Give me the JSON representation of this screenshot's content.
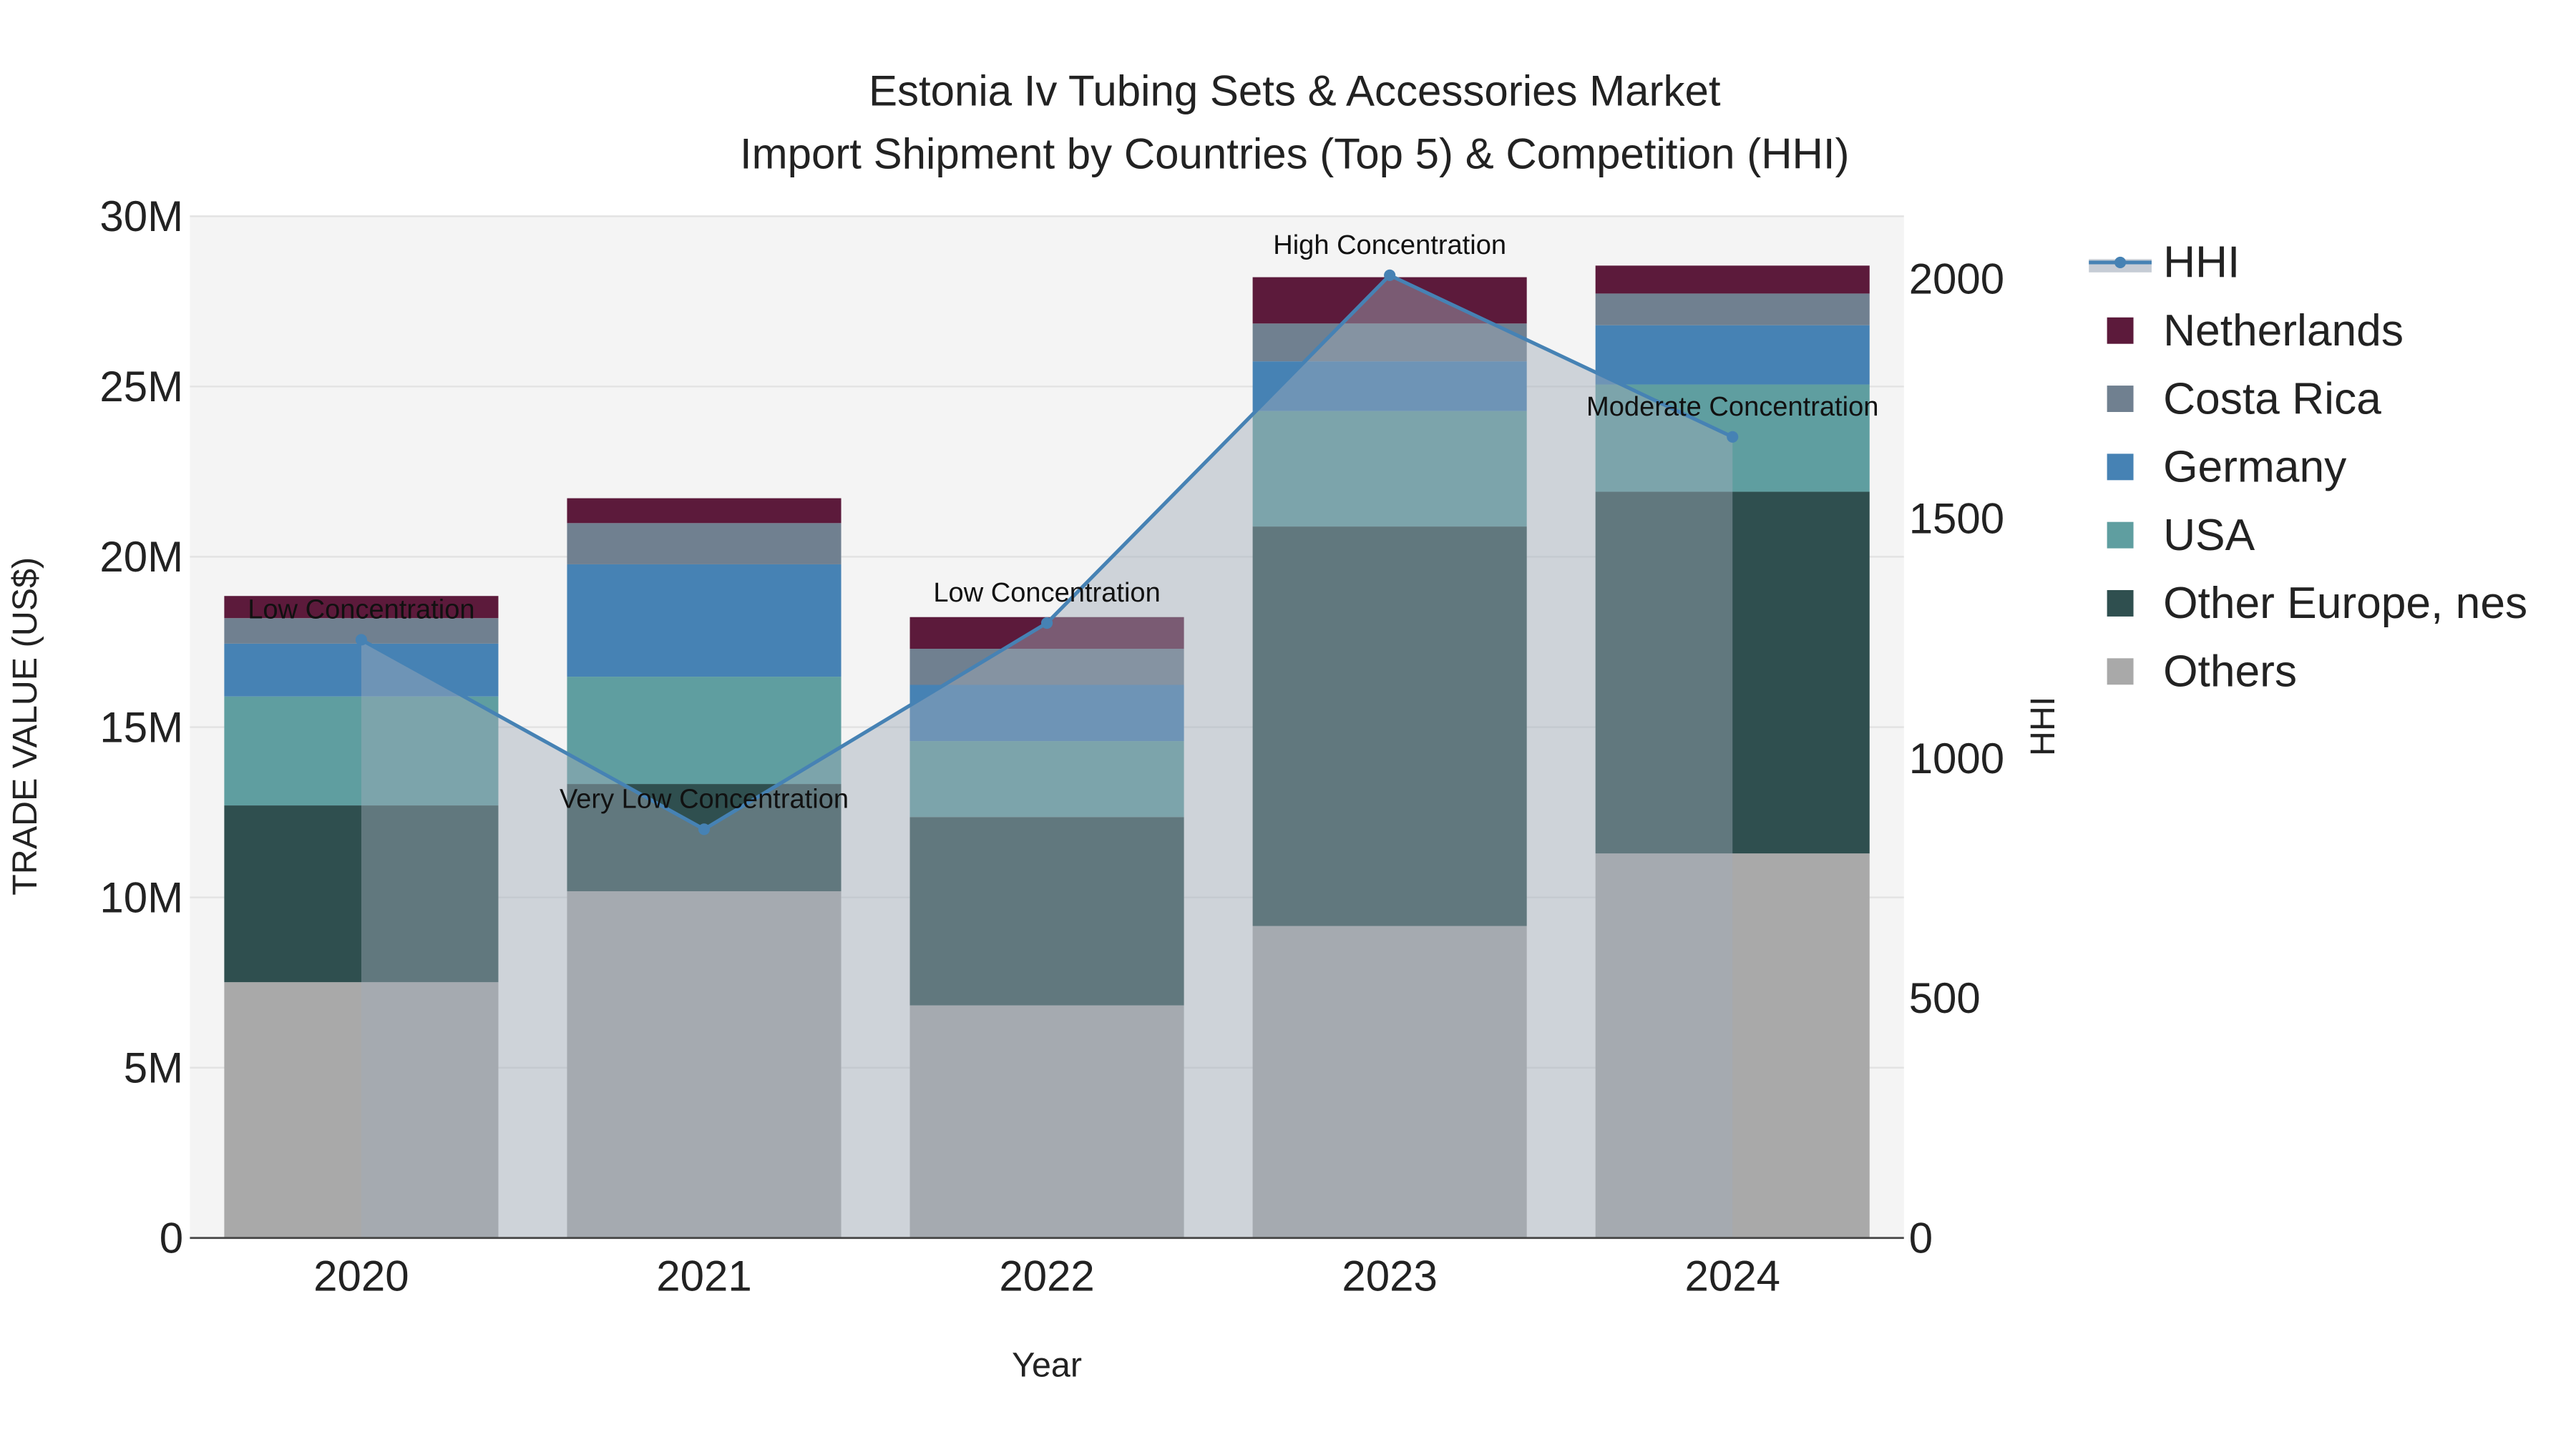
{
  "chart_data": {
    "type": "bar",
    "stacked": true,
    "title": "Estonia Iv Tubing Sets & Accessories Market",
    "subtitle": "Import Shipment by Countries (Top 5) & Competition (HHI)",
    "xlabel": "Year",
    "ylabel": "TRADE VALUE (US$)",
    "y2label": "HHI",
    "categories": [
      "2020",
      "2021",
      "2022",
      "2023",
      "2024"
    ],
    "ylim": [
      0,
      30000000
    ],
    "y2lim": [
      0,
      2130
    ],
    "yticks": [
      {
        "v": 0,
        "label": "0"
      },
      {
        "v": 5000000,
        "label": "5M"
      },
      {
        "v": 10000000,
        "label": "10M"
      },
      {
        "v": 15000000,
        "label": "15M"
      },
      {
        "v": 20000000,
        "label": "20M"
      },
      {
        "v": 25000000,
        "label": "25M"
      },
      {
        "v": 30000000,
        "label": "30M"
      }
    ],
    "y2ticks": [
      {
        "v": 0,
        "label": "0"
      },
      {
        "v": 500,
        "label": "500"
      },
      {
        "v": 1000,
        "label": "1000"
      },
      {
        "v": 1500,
        "label": "1500"
      },
      {
        "v": 2000,
        "label": "2000"
      }
    ],
    "grid": true,
    "legend_position": "right",
    "series": [
      {
        "name": "Others",
        "color": "#a9a9a9",
        "values": [
          7510000,
          10180000,
          6830000,
          9160000,
          11290000
        ]
      },
      {
        "name": "Other Europe, nes",
        "color": "#2f4f4f",
        "values": [
          5190000,
          3150000,
          5530000,
          11730000,
          10620000
        ]
      },
      {
        "name": "USA",
        "color": "#5f9ea0",
        "values": [
          3200000,
          3150000,
          2230000,
          3390000,
          3150000
        ]
      },
      {
        "name": "Germany",
        "color": "#4682b4",
        "values": [
          1550000,
          3300000,
          1650000,
          1460000,
          1740000
        ]
      },
      {
        "name": "Costa Rica",
        "color": "#708090",
        "values": [
          750000,
          1210000,
          1060000,
          1110000,
          930000
        ]
      },
      {
        "name": "Netherlands",
        "color": "#5c1a3b",
        "values": [
          650000,
          730000,
          930000,
          1360000,
          820000
        ]
      }
    ],
    "hhi": {
      "name": "HHI",
      "color": "#4682b4",
      "values": [
        1247,
        852,
        1282,
        2007,
        1670
      ],
      "annotations": [
        "Low Concentration",
        "Very Low Concentration",
        "Low Concentration",
        "High Concentration",
        "Moderate Concentration"
      ]
    },
    "legend": [
      "HHI",
      "Netherlands",
      "Costa Rica",
      "Germany",
      "USA",
      "Other Europe, nes",
      "Others"
    ]
  }
}
